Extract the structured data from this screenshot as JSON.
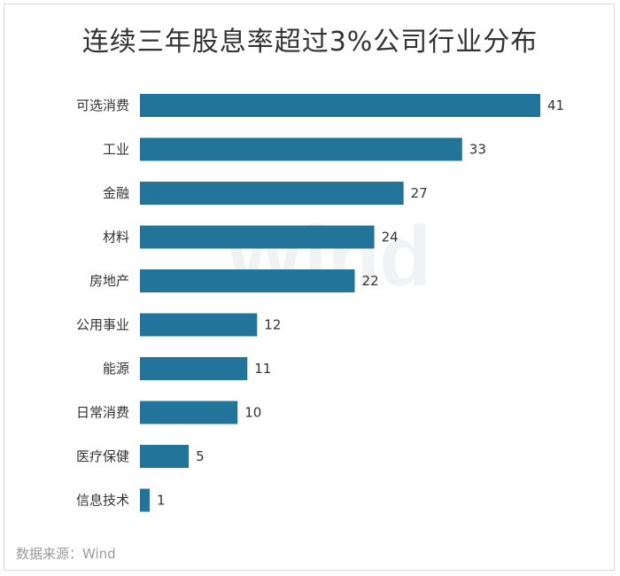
{
  "title": "连续三年股息率超过3%公司行业分布",
  "source": "数据来源：Wind",
  "watermark": "Wind",
  "colors": {
    "bar": "#23749b",
    "text": "#333333",
    "watermark": "#f0f2f3"
  },
  "chart_data": {
    "type": "bar",
    "orientation": "horizontal",
    "title": "连续三年股息率超过3%公司行业分布",
    "categories": [
      "可选消费",
      "工业",
      "金融",
      "材料",
      "房地产",
      "公用事业",
      "能源",
      "日常消费",
      "医疗保健",
      "信息技术"
    ],
    "values": [
      41,
      33,
      27,
      24,
      22,
      12,
      11,
      10,
      5,
      1
    ],
    "xlim": [
      0,
      41
    ],
    "grid": false,
    "legend": "none",
    "data_labels": true
  }
}
